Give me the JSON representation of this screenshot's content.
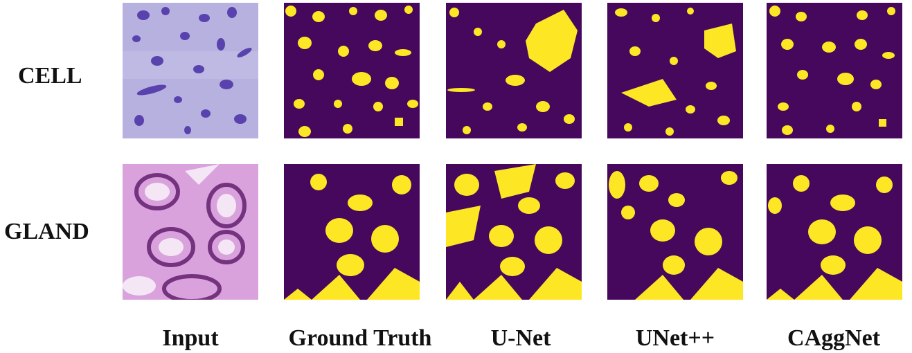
{
  "rows": [
    "CELL",
    "GLAND"
  ],
  "columns": [
    "Input",
    "Ground Truth",
    "U-Net",
    "UNet++",
    "CAggNet"
  ],
  "colors": {
    "mask_background": "#46085c",
    "mask_foreground": "#fde724",
    "cell_stain_bg": "#b6b1df",
    "cell_nucleus": "#4f37a8",
    "gland_bg": "#d9a2dd",
    "gland_nuclei": "#5b1768",
    "gland_lumen": "#f4e6f5"
  }
}
